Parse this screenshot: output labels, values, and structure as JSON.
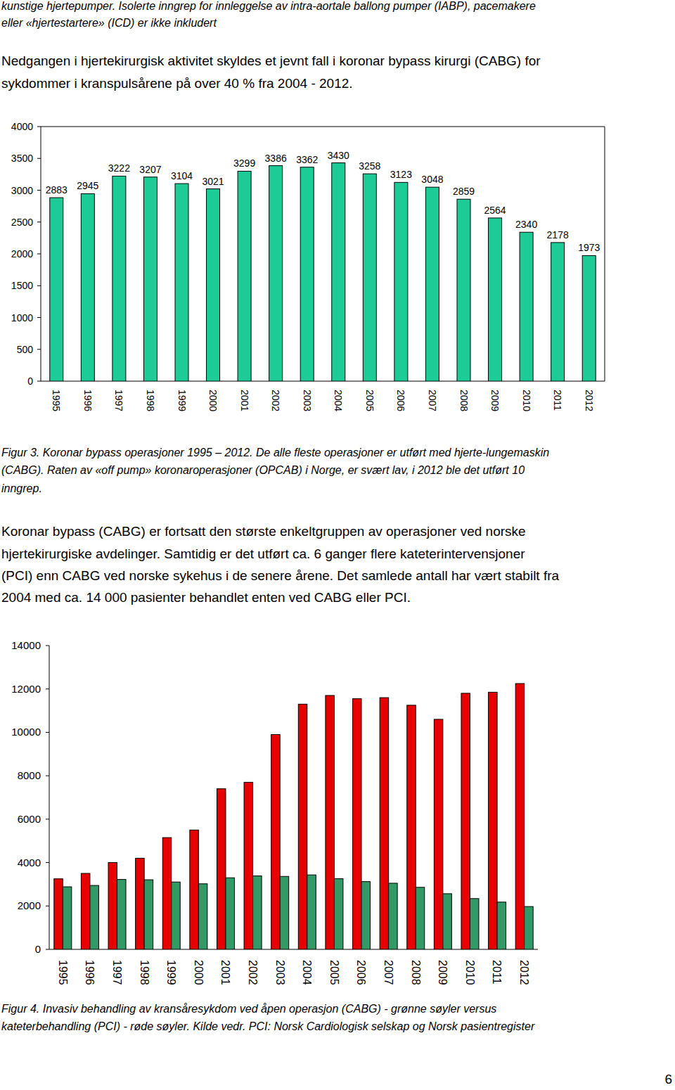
{
  "intro_note": {
    "lines": [
      "kunstige hjertepumper. Isolerte inngrep for innleggelse av intra-aortale ballong pumper (IABP), pacemakere",
      "eller «hjertestartere» (ICD) er ikke inkludert"
    ]
  },
  "paragraph_1": {
    "lines": [
      "Nedgangen i hjertekirurgisk aktivitet skyldes et jevnt fall i koronar bypass kirurgi (CABG) for",
      "sykdommer i kranspulsårene på over 40 % fra 2004 - 2012."
    ]
  },
  "chart_data": [
    {
      "type": "bar",
      "categories": [
        "1995",
        "1996",
        "1997",
        "1998",
        "1999",
        "2000",
        "2001",
        "2002",
        "2003",
        "2004",
        "2005",
        "2006",
        "2007",
        "2008",
        "2009",
        "2010",
        "2011",
        "2012"
      ],
      "values": [
        2883,
        2945,
        3222,
        3207,
        3104,
        3021,
        3299,
        3386,
        3362,
        3430,
        3258,
        3123,
        3048,
        2859,
        2564,
        2340,
        2178,
        1973
      ],
      "color": "#1ccb96",
      "ylim": [
        0,
        4000
      ],
      "yticks": [
        0,
        500,
        1000,
        1500,
        2000,
        2500,
        3000,
        3500,
        4000
      ],
      "data_labels": true,
      "grid": false
    },
    {
      "type": "bar",
      "categories": [
        "1995",
        "1996",
        "1997",
        "1998",
        "1999",
        "2000",
        "2001",
        "2002",
        "2003",
        "2004",
        "2005",
        "2006",
        "2007",
        "2008",
        "2009",
        "2010",
        "2011",
        "2012"
      ],
      "series": [
        {
          "color": "#e60000",
          "values": [
            3250,
            3500,
            4000,
            4200,
            5150,
            5500,
            7400,
            7700,
            9900,
            11300,
            11700,
            11550,
            11600,
            11250,
            10600,
            11800,
            11850,
            12250
          ]
        },
        {
          "color": "#339966",
          "values": [
            2883,
            2945,
            3222,
            3207,
            3104,
            3021,
            3299,
            3386,
            3362,
            3430,
            3258,
            3123,
            3048,
            2859,
            2564,
            2340,
            2178,
            1973
          ]
        }
      ],
      "ylim": [
        0,
        14000
      ],
      "yticks": [
        0,
        2000,
        4000,
        6000,
        8000,
        10000,
        12000,
        14000
      ],
      "grid": false
    }
  ],
  "caption_1": {
    "lines": [
      "Figur 3. Koronar bypass operasjoner 1995 – 2012. De alle fleste operasjoner er utført med hjerte-lungemaskin",
      "(CABG). Raten av «off pump» koronaroperasjoner (OPCAB) i Norge, er svært lav, i 2012 ble det utført 10",
      "inngrep."
    ]
  },
  "paragraph_2": {
    "lines": [
      "Koronar bypass (CABG) er fortsatt den største enkeltgruppen av operasjoner ved norske",
      "hjertekirurgiske avdelinger. Samtidig er det utført ca. 6 ganger flere kateterintervensjoner",
      "(PCI) enn CABG ved norske sykehus i de senere årene.  Det samlede antall har vært stabilt fra",
      "2004 med ca. 14 000 pasienter behandlet enten ved CABG eller PCI."
    ]
  },
  "caption_2": {
    "lines": [
      "Figur 4. Invasiv behandling av kransåresykdom ved åpen operasjon (CABG) - grønne søyler versus",
      "kateterbehandling (PCI) - røde søyler. Kilde vedr. PCI: Norsk Cardiologisk selskap og Norsk pasientregister"
    ]
  },
  "page_number": 6
}
